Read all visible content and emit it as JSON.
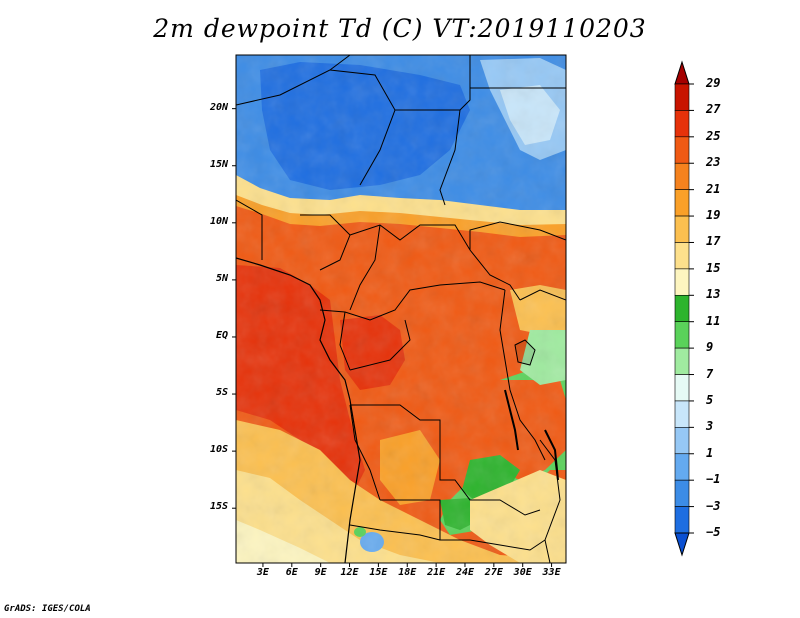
{
  "title": "2m dewpoint Td (C) VT:2019110203",
  "credit": "GrADS: IGES/COLA",
  "map": {
    "lat_labels": [
      "20N",
      "15N",
      "10N",
      "5N",
      "EQ",
      "5S",
      "10S",
      "15S"
    ],
    "lon_labels": [
      "3E",
      "6E",
      "9E",
      "12E",
      "15E",
      "18E",
      "21E",
      "24E",
      "27E",
      "30E",
      "33E"
    ],
    "lat_values": [
      20,
      15,
      10,
      5,
      0,
      -5,
      -10,
      -15
    ],
    "lon_values": [
      3,
      6,
      9,
      12,
      15,
      18,
      21,
      24,
      27,
      30,
      33
    ]
  },
  "colorbar": {
    "labels": [
      "29",
      "27",
      "25",
      "23",
      "21",
      "19",
      "17",
      "15",
      "13",
      "11",
      "9",
      "7",
      "5",
      "3",
      "1",
      "−1",
      "−3",
      "−5"
    ],
    "colors": [
      "#a50000",
      "#c81400",
      "#e6320a",
      "#f05a14",
      "#f5821e",
      "#faa028",
      "#fcc050",
      "#fde08c",
      "#fdf5c0",
      "#2db42d",
      "#5ad25a",
      "#a0eba0",
      "#e6faf5",
      "#c8e6fa",
      "#96c8f5",
      "#64aaf0",
      "#3c8ce6",
      "#1e6ee1",
      "#0a50d2"
    ]
  }
}
